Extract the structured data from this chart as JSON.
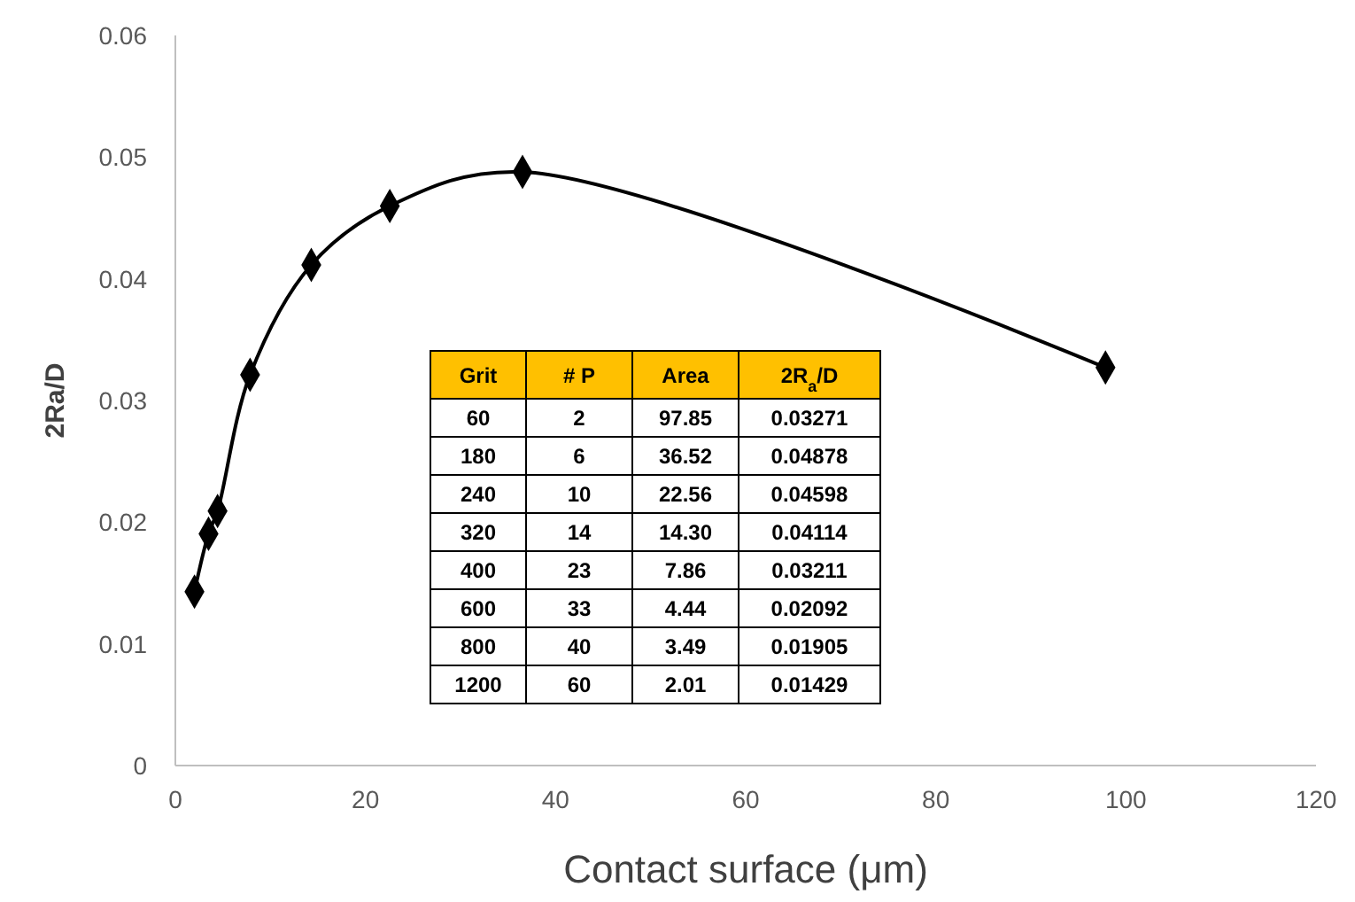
{
  "chart_data": {
    "type": "line",
    "xlabel": "Contact surface (μm)",
    "ylabel": "2Ra/D",
    "x": [
      97.85,
      36.52,
      22.56,
      14.3,
      7.86,
      4.44,
      3.49,
      2.01
    ],
    "series": [
      {
        "color": "#000000",
        "values": [
          0.03271,
          0.04878,
          0.04598,
          0.04114,
          0.03211,
          0.02092,
          0.01905,
          0.01429
        ]
      }
    ],
    "marker": "diamond",
    "line_style": "solid",
    "grid": false,
    "xlim": [
      0,
      120
    ],
    "xticks": [
      0,
      20,
      40,
      60,
      80,
      100,
      120
    ],
    "ylim": [
      0,
      0.06
    ],
    "yticks": [
      0,
      0.01,
      0.02,
      0.03,
      0.04,
      0.05,
      0.06
    ],
    "annotations": [
      "Grit",
      "# P",
      "Area",
      "2R$_{a}$/D",
      "60",
      "2",
      "97.85",
      "0.03271",
      "180",
      "6",
      "36.52",
      "0.04878",
      "240",
      "10",
      "22.56",
      "0.04598",
      "320",
      "14",
      "14.30",
      "0.04114",
      "400",
      "23",
      "7.86",
      "0.03211",
      "600",
      "33",
      "4.44",
      "0.02092",
      "800",
      "40",
      "3.49",
      "0.01905",
      "1200",
      "60",
      "2.01",
      "0.01429"
    ]
  }
}
